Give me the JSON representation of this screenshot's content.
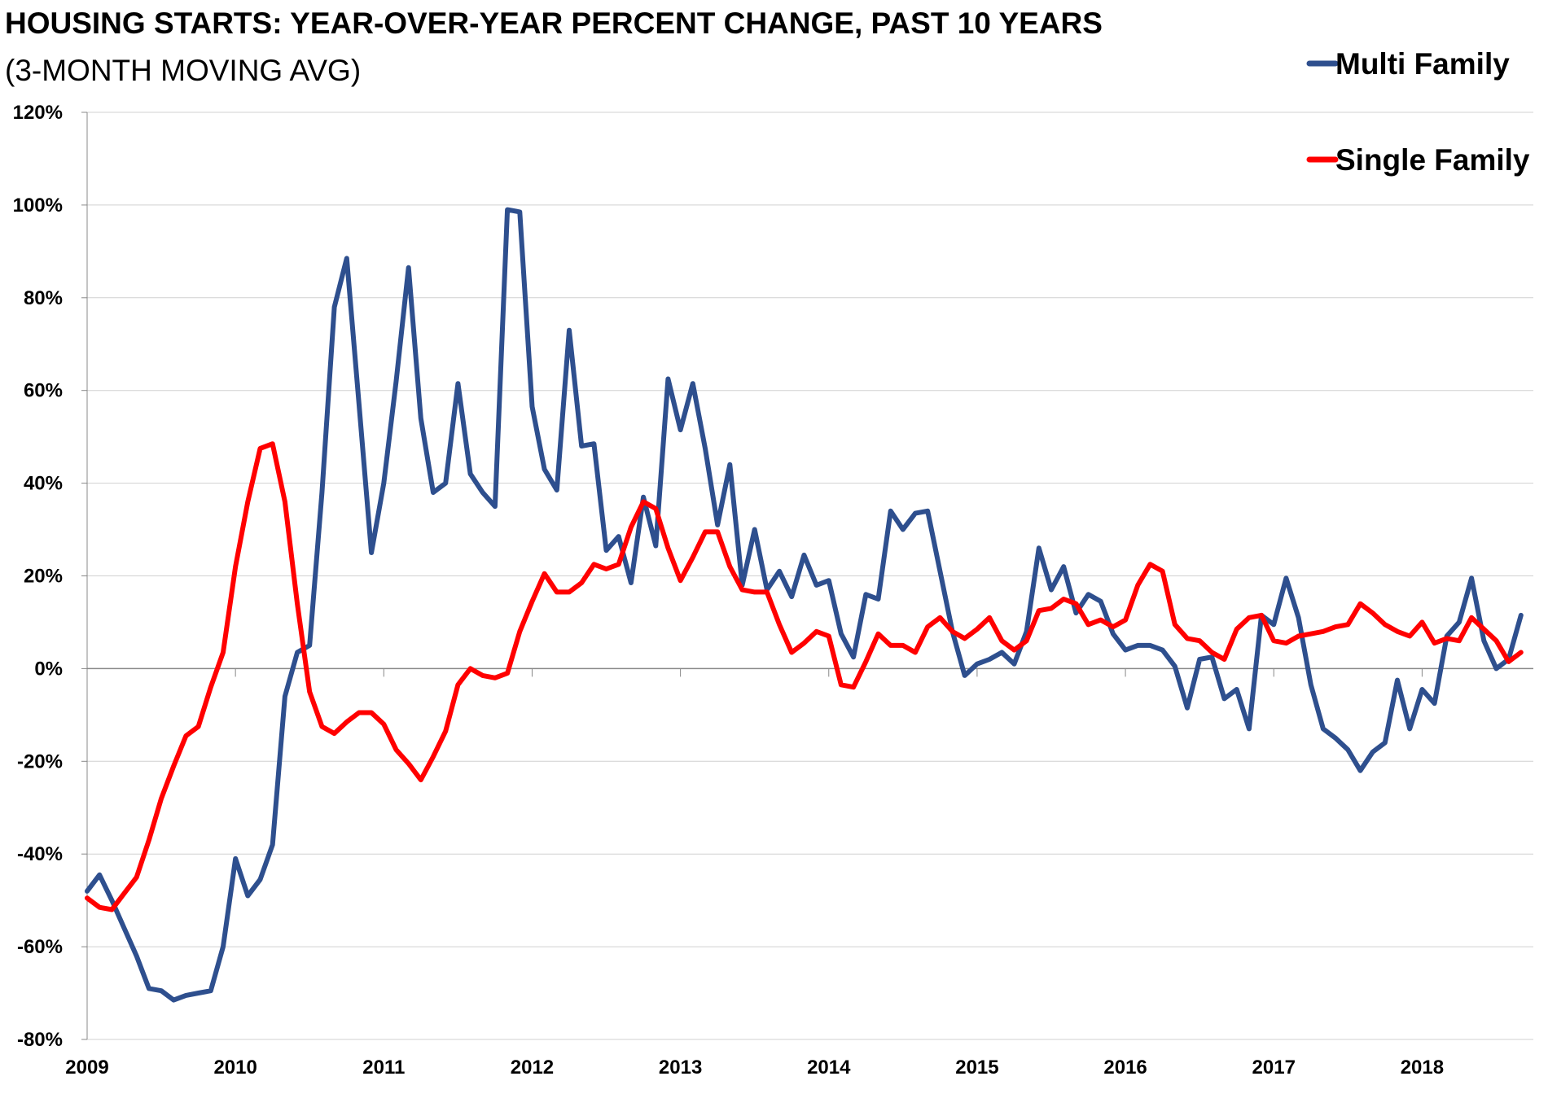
{
  "chart_data": {
    "type": "line",
    "title": "HOUSING STARTS: YEAR-OVER-YEAR PERCENT CHANGE, PAST 10 YEARS",
    "subtitle": "(3-MONTH MOVING AVG)",
    "xlabel": "",
    "ylabel": "",
    "x_tick_labels": [
      "2009",
      "2010",
      "2011",
      "2012",
      "2013",
      "2014",
      "2015",
      "2016",
      "2017",
      "2018"
    ],
    "y_tick_labels": [
      "120%",
      "100%",
      "80%",
      "60%",
      "40%",
      "20%",
      "0%",
      "-20%",
      "-40%",
      "-60%",
      "-80%"
    ],
    "ylim": [
      -80,
      120
    ],
    "xlim": [
      2009.0,
      2018.75
    ],
    "grid": "horizontal",
    "legend_position": "top-right",
    "x_step_months": 1,
    "x_start": "2009-01",
    "series": [
      {
        "name": "Multi Family",
        "color": "#2E4F8E",
        "values": [
          -48,
          -44.5,
          -50,
          -56,
          -62,
          -69,
          -69.5,
          -71.5,
          -70.5,
          -70,
          -69.5,
          -60,
          -41,
          -49,
          -45.5,
          -38,
          -6,
          3.5,
          5,
          38,
          78,
          88.5,
          57,
          25,
          40,
          62,
          86.5,
          54,
          38,
          40,
          61.5,
          42,
          38,
          35,
          99,
          98.5,
          56.5,
          43,
          38.5,
          73,
          48,
          48.5,
          25.5,
          28.5,
          18.5,
          37,
          26.5,
          62.5,
          51.5,
          61.5,
          47.5,
          31,
          44,
          18,
          30,
          17,
          21,
          15.5,
          24.5,
          18,
          19,
          7.5,
          2.5,
          16,
          15,
          34,
          30,
          33.5,
          34,
          21,
          8,
          -1.5,
          1,
          2,
          3.5,
          1,
          8,
          26,
          17,
          22,
          12,
          16,
          14.5,
          7.5,
          4,
          5,
          5,
          4,
          0.5,
          -8.5,
          2,
          2.5,
          -6.5,
          -4.5,
          -13,
          11.5,
          9.5,
          19.5,
          11,
          -3.5,
          -13,
          -15,
          -17.5,
          -22,
          -18,
          -16,
          -2.5,
          -13,
          -4.5,
          -7.5,
          7,
          10,
          19.5,
          6,
          0,
          2,
          11.5
        ]
      },
      {
        "name": "Single Family",
        "color": "#FF0000",
        "values": [
          -49.5,
          -51.5,
          -52,
          -48.5,
          -45,
          -37,
          -28,
          -21,
          -14.5,
          -12.5,
          -4,
          3.5,
          22,
          36,
          47.5,
          48.5,
          36,
          14,
          -5,
          -12.5,
          -14,
          -11.5,
          -9.5,
          -9.5,
          -12,
          -17.5,
          -20.5,
          -24,
          -19,
          -13.5,
          -3.5,
          0,
          -1.5,
          -2,
          -1,
          8,
          14.5,
          20.5,
          16.5,
          16.5,
          18.5,
          22.5,
          21.5,
          22.5,
          30.5,
          36,
          34.5,
          26,
          19,
          24,
          29.5,
          29.5,
          22,
          17,
          16.5,
          16.5,
          9.5,
          3.5,
          5.5,
          8,
          7,
          -3.5,
          -4,
          1.5,
          7.5,
          5,
          5,
          3.5,
          9,
          11,
          8,
          6.5,
          8.5,
          11,
          6,
          4,
          6,
          12.5,
          13,
          15,
          14,
          9.5,
          10.5,
          9,
          10.5,
          18,
          22.5,
          21,
          9.5,
          6.5,
          6,
          3.5,
          2,
          8.5,
          11,
          11.5,
          6,
          5.5,
          7,
          7.5,
          8,
          9,
          9.5,
          14,
          12,
          9.5,
          8,
          7,
          10,
          5.5,
          6.5,
          6,
          11,
          8.5,
          6,
          1.5,
          3.5
        ]
      }
    ]
  }
}
